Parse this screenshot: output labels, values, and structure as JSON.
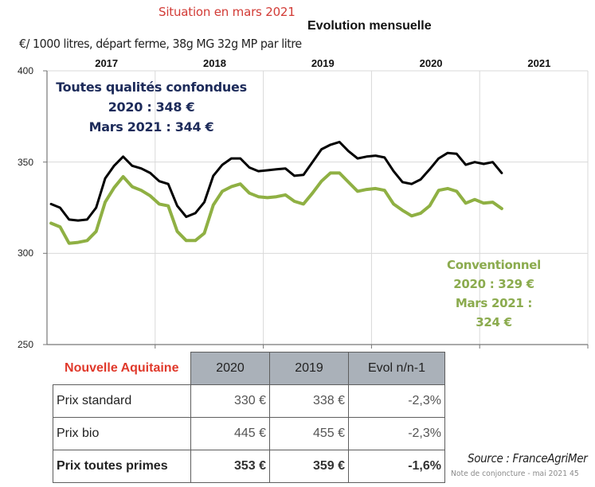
{
  "header": {
    "situation": "Situation en mars 2021",
    "title": "Evolution mensuelle",
    "unit_label": "€/ 1000 litres, départ ferme, 38g MG 32g MP par litre"
  },
  "colors": {
    "toutes_qualites": "#000000",
    "conventionnel": "#8fb043",
    "annotation_tq": "#1d2b5a",
    "annotation_conv": "#8bab4e",
    "region_label": "#e0392b",
    "table_header_bg": "#aab1b9"
  },
  "annotations": {
    "toutes_qualites": [
      "Toutes qualités confondues",
      "2020 : 348 €",
      "Mars 2021 :  344 €"
    ],
    "conventionnel": [
      "Conventionnel",
      "2020 : 329 €",
      "Mars 2021 : 324 €"
    ]
  },
  "chart_data": {
    "type": "line",
    "title": "Evolution mensuelle",
    "subtitle": "Situation en mars 2021",
    "xlabel": "",
    "ylabel": "€/ 1000 litres, départ ferme, 38g MG 32g MP par litre",
    "ylim": [
      250,
      400
    ],
    "yticks": [
      250,
      300,
      350,
      400
    ],
    "year_labels": [
      "2017",
      "2018",
      "2019",
      "2020",
      "2021"
    ],
    "x_start": "2017-01",
    "x_end": "2021-03",
    "months_per_year": 12,
    "grid": true,
    "legend": "none (inline annotations)",
    "series": [
      {
        "name": "Toutes qualités confondues",
        "color": "#000000",
        "values": [
          327,
          325,
          318.5,
          318,
          318.5,
          325,
          341,
          348,
          353,
          348,
          346.5,
          344,
          339.5,
          338,
          326,
          320,
          322,
          328,
          342.5,
          348.5,
          352,
          352,
          347,
          345,
          345.5,
          346,
          346.5,
          342.5,
          343,
          350,
          357,
          359.5,
          361,
          356,
          352,
          353,
          353.5,
          352.5,
          345,
          339,
          338,
          340.5,
          346,
          352,
          355,
          354.5,
          348.5,
          350,
          349,
          350,
          344
        ]
      },
      {
        "name": "Conventionnel",
        "color": "#8fb043",
        "values": [
          316.5,
          314.5,
          305.5,
          306,
          307,
          312,
          328,
          336,
          342,
          336.5,
          334.5,
          331.5,
          327,
          326,
          312,
          307,
          307,
          311,
          326.5,
          334,
          336.5,
          338,
          333,
          331,
          330.5,
          331,
          332,
          328.5,
          327,
          333,
          339.5,
          344,
          344,
          339,
          334,
          335,
          335.5,
          334.5,
          327,
          323.5,
          320.5,
          322,
          326,
          334.5,
          335.5,
          334,
          327.5,
          329.5,
          327.5,
          328,
          324.5
        ]
      }
    ]
  },
  "table": {
    "region": "Nouvelle Aquitaine",
    "columns": [
      "2020",
      "2019",
      "Evol n/n-1"
    ],
    "rows": [
      {
        "label": "Prix standard",
        "v2020": "330 €",
        "v2019": "338 €",
        "evol": "-2,3%",
        "bold": false
      },
      {
        "label": "Prix bio",
        "v2020": "445 €",
        "v2019": "455 €",
        "evol": "-2,3%",
        "bold": false
      },
      {
        "label": "Prix toutes primes",
        "v2020": "353 €",
        "v2019": "359 €",
        "evol": "-1,6%",
        "bold": true
      }
    ]
  },
  "footer": {
    "source": "Source : FranceAgriMer",
    "note": "Note de conjoncture - mai 2021 45"
  }
}
